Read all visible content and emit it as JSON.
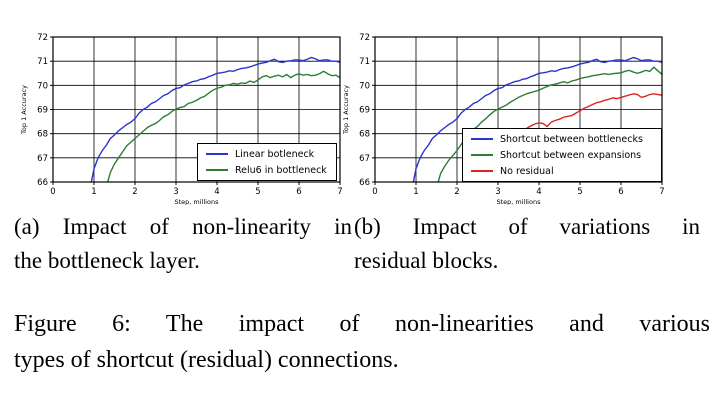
{
  "page": {
    "background": "#ffffff"
  },
  "subcaptions": {
    "a_line1": "(a) Impact of non-linearity in",
    "a_line2": "the bottleneck layer.",
    "b_line1": "(b) Impact of variations in",
    "b_line2": "residual blocks."
  },
  "figure_caption": {
    "line1": "Figure 6: The impact of non-linearities and various",
    "line2": "types of shortcut (residual) connections."
  },
  "chart_data": [
    {
      "type": "line",
      "title": "",
      "xlabel": "Step, millions",
      "ylabel": "Top 1 Accuracy",
      "xlim": [
        0,
        7
      ],
      "ylim": [
        66,
        72
      ],
      "xticks": [
        0,
        1,
        2,
        3,
        4,
        5,
        6,
        7
      ],
      "yticks": [
        66,
        67,
        68,
        69,
        70,
        71,
        72
      ],
      "grid": true,
      "legend_position": "lower right",
      "series": [
        {
          "name": "Linear botleneck",
          "color": "#2a35cc",
          "x_start": 0.9,
          "x_step": 0.1,
          "y": [
            65.7,
            66.55,
            67.0,
            67.3,
            67.52,
            67.8,
            67.95,
            68.12,
            68.25,
            68.38,
            68.48,
            68.62,
            68.85,
            69.0,
            69.1,
            69.25,
            69.32,
            69.45,
            69.58,
            69.65,
            69.78,
            69.87,
            69.9,
            70.02,
            70.08,
            70.15,
            70.18,
            70.25,
            70.28,
            70.36,
            70.42,
            70.5,
            70.52,
            70.55,
            70.6,
            70.58,
            70.65,
            70.7,
            70.72,
            70.76,
            70.82,
            70.88,
            70.92,
            70.95,
            71.02,
            71.08,
            70.98,
            70.95,
            71.0,
            71.02,
            71.05,
            71.05,
            71.02,
            71.08,
            71.15,
            71.1,
            71.02,
            71.05,
            71.05,
            71.0,
            71.0,
            70.95
          ]
        },
        {
          "name": "Relu6 in bottleneck",
          "color": "#2d7e32",
          "x_start": 1.3,
          "x_step": 0.1,
          "y": [
            65.8,
            66.4,
            66.75,
            67.0,
            67.25,
            67.5,
            67.65,
            67.8,
            67.95,
            68.1,
            68.25,
            68.35,
            68.42,
            68.55,
            68.7,
            68.78,
            68.92,
            69.02,
            69.08,
            69.12,
            69.25,
            69.3,
            69.38,
            69.48,
            69.55,
            69.68,
            69.8,
            69.88,
            69.92,
            70.0,
            70.02,
            70.08,
            70.05,
            70.1,
            70.08,
            70.18,
            70.12,
            70.22,
            70.35,
            70.4,
            70.32,
            70.38,
            70.42,
            70.35,
            70.45,
            70.32,
            70.42,
            70.48,
            70.42,
            70.45,
            70.4,
            70.42,
            70.48,
            70.58,
            70.48,
            70.4,
            70.42,
            70.32
          ]
        }
      ]
    },
    {
      "type": "line",
      "title": "",
      "xlabel": "Step, millions",
      "ylabel": "Top 1 Accuracy",
      "xlim": [
        0,
        7
      ],
      "ylim": [
        66,
        72
      ],
      "xticks": [
        0,
        1,
        2,
        3,
        4,
        5,
        6,
        7
      ],
      "yticks": [
        66,
        67,
        68,
        69,
        70,
        71,
        72
      ],
      "grid": true,
      "legend_position": "lower center",
      "series": [
        {
          "name": "Shortcut between bottlenecks",
          "color": "#2a35cc",
          "x_start": 0.9,
          "x_step": 0.1,
          "y": [
            65.7,
            66.55,
            67.0,
            67.3,
            67.52,
            67.8,
            67.95,
            68.12,
            68.25,
            68.38,
            68.48,
            68.62,
            68.85,
            69.0,
            69.1,
            69.25,
            69.32,
            69.45,
            69.58,
            69.65,
            69.78,
            69.87,
            69.9,
            70.02,
            70.08,
            70.15,
            70.18,
            70.25,
            70.28,
            70.36,
            70.42,
            70.5,
            70.52,
            70.55,
            70.6,
            70.58,
            70.65,
            70.7,
            70.72,
            70.76,
            70.82,
            70.88,
            70.92,
            70.95,
            71.02,
            71.08,
            70.98,
            70.95,
            71.0,
            71.02,
            71.05,
            71.05,
            71.02,
            71.08,
            71.15,
            71.1,
            71.02,
            71.05,
            71.05,
            71.0,
            71.0,
            70.95
          ]
        },
        {
          "name": "Shortcut between expansions",
          "color": "#2d7e32",
          "x_start": 1.5,
          "x_step": 0.1,
          "y": [
            65.75,
            66.35,
            66.65,
            66.9,
            67.1,
            67.3,
            67.55,
            67.8,
            68.0,
            68.18,
            68.3,
            68.48,
            68.62,
            68.78,
            68.92,
            69.02,
            69.1,
            69.18,
            69.3,
            69.4,
            69.5,
            69.58,
            69.65,
            69.7,
            69.75,
            69.8,
            69.88,
            69.95,
            70.02,
            70.05,
            70.1,
            70.15,
            70.1,
            70.18,
            70.22,
            70.28,
            70.32,
            70.35,
            70.4,
            70.42,
            70.45,
            70.48,
            70.45,
            70.48,
            70.5,
            70.52,
            70.58,
            70.62,
            70.55,
            70.5,
            70.55,
            70.62,
            70.58,
            70.75,
            70.6,
            70.45
          ]
        },
        {
          "name": "No residual",
          "color": "#dd2222",
          "x_start": 2.4,
          "x_step": 0.1,
          "y": [
            65.7,
            66.2,
            66.45,
            66.7,
            66.92,
            67.12,
            67.3,
            67.48,
            67.62,
            67.78,
            67.92,
            68.02,
            68.12,
            68.22,
            68.32,
            68.4,
            68.45,
            68.42,
            68.3,
            68.48,
            68.55,
            68.6,
            68.68,
            68.72,
            68.75,
            68.85,
            68.95,
            69.05,
            69.12,
            69.2,
            69.28,
            69.32,
            69.38,
            69.42,
            69.48,
            69.45,
            69.5,
            69.55,
            69.6,
            69.65,
            69.62,
            69.5,
            69.55,
            69.62,
            69.65,
            69.62,
            69.6
          ]
        }
      ]
    }
  ]
}
